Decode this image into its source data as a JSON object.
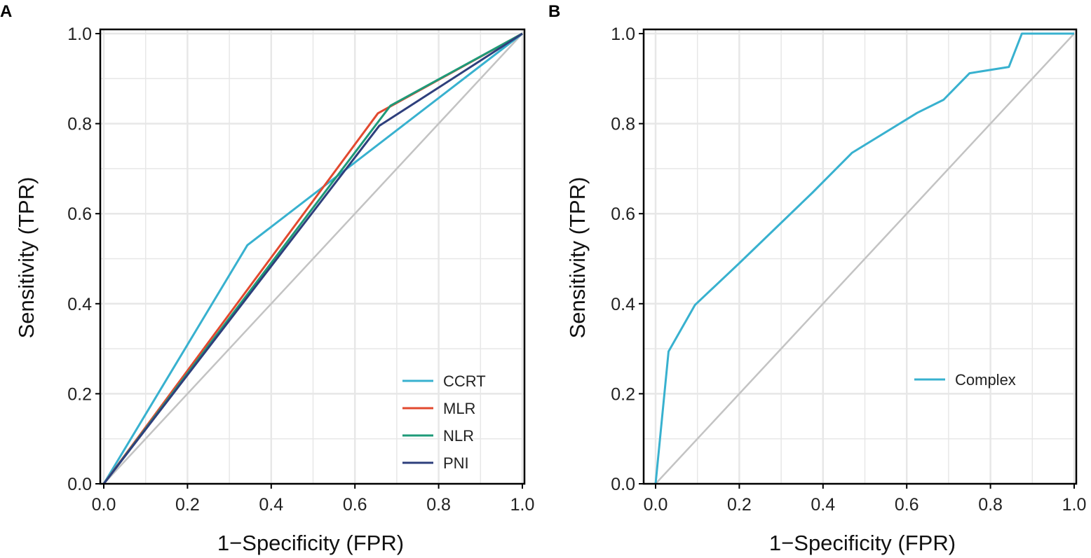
{
  "colors": {
    "CCRT": "#38b1cf",
    "MLR": "#e2492f",
    "NLR": "#1e9a78",
    "PNI": "#2e3f7c",
    "Complex": "#38b1cf",
    "diagonal": "#c3c3c3",
    "grid": "#e7e7e7",
    "axis": "#000000"
  },
  "chart_data": [
    {
      "type": "line",
      "panel": "A",
      "xlabel": "1−Specificity (FPR)",
      "ylabel": "Sensitivity (TPR)",
      "xlim": [
        0,
        1
      ],
      "ylim": [
        0,
        1
      ],
      "x_ticks": [
        "0.0",
        "0.2",
        "0.4",
        "0.6",
        "0.8",
        "1.0"
      ],
      "y_ticks": [
        "0.0",
        "0.2",
        "0.4",
        "0.6",
        "0.8",
        "1.0"
      ],
      "grid": true,
      "legend_position": "bottom-right",
      "reference_line": [
        [
          0,
          0
        ],
        [
          1,
          1
        ]
      ],
      "series": [
        {
          "name": "CCRT",
          "x": [
            0,
            0.343,
            1
          ],
          "y": [
            0,
            0.53,
            1
          ]
        },
        {
          "name": "MLR",
          "x": [
            0,
            0.655,
            1
          ],
          "y": [
            0,
            0.823,
            1
          ]
        },
        {
          "name": "NLR",
          "x": [
            0,
            0.685,
            1
          ],
          "y": [
            0,
            0.84,
            1
          ]
        },
        {
          "name": "PNI",
          "x": [
            0,
            0.658,
            1
          ],
          "y": [
            0,
            0.795,
            1
          ]
        }
      ]
    },
    {
      "type": "line",
      "panel": "B",
      "xlabel": "1−Specificity (FPR)",
      "ylabel": "Sensitivity (TPR)",
      "xlim": [
        0,
        1
      ],
      "ylim": [
        0,
        1
      ],
      "x_ticks": [
        "0.0",
        "0.2",
        "0.4",
        "0.6",
        "0.8",
        "1.0"
      ],
      "y_ticks": [
        "0.0",
        "0.2",
        "0.4",
        "0.6",
        "0.8",
        "1.0"
      ],
      "grid": true,
      "legend_position": "bottom-right",
      "reference_line": [
        [
          0,
          0
        ],
        [
          1,
          1
        ]
      ],
      "series": [
        {
          "name": "Complex",
          "x": [
            0,
            0.031,
            0.094,
            0.2,
            0.375,
            0.469,
            0.625,
            0.688,
            0.75,
            0.844,
            0.875,
            1.0
          ],
          "y": [
            0,
            0.294,
            0.397,
            0.49,
            0.647,
            0.735,
            0.824,
            0.853,
            0.912,
            0.926,
            1.0,
            1.0
          ]
        }
      ]
    }
  ]
}
